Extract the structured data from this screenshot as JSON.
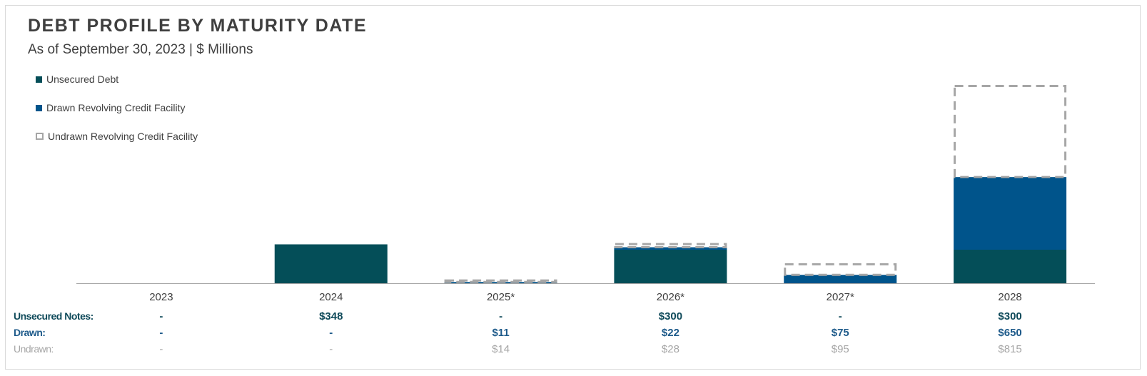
{
  "title": "DEBT PROFILE BY MATURITY DATE",
  "subtitle": "As of September 30, 2023 | $ Millions",
  "colors": {
    "unsecured": "#044e58",
    "drawn": "#00548b",
    "undrawn_border": "#a6a6a6",
    "axis": "#a6a6a6"
  },
  "legend": [
    {
      "label": "Unsecured Debt",
      "style": "solid",
      "color": "#044e58"
    },
    {
      "label": "Drawn Revolving Credit Facility",
      "style": "solid",
      "color": "#00548b"
    },
    {
      "label": "Undrawn Revolving Credit Facility",
      "style": "dashed",
      "color": "#a6a6a6"
    }
  ],
  "chart_data": {
    "type": "bar",
    "stacked": true,
    "categories": [
      "2023",
      "2024",
      "2025*",
      "2026*",
      "2027*",
      "2028"
    ],
    "series": [
      {
        "name": "Unsecured Debt",
        "values": [
          0,
          348,
          0,
          300,
          0,
          300
        ]
      },
      {
        "name": "Drawn Revolving Credit Facility",
        "values": [
          0,
          0,
          11,
          22,
          75,
          650
        ]
      },
      {
        "name": "Undrawn Revolving Credit Facility",
        "values": [
          0,
          0,
          14,
          28,
          95,
          815
        ]
      }
    ],
    "ylim": [
      0,
      1800
    ],
    "grid": false,
    "legend_position": "top-left"
  },
  "table": {
    "rows": [
      {
        "label": "Unsecured Notes:",
        "values": [
          "-",
          "$348",
          "-",
          "$300",
          "-",
          "$300"
        ]
      },
      {
        "label": "Drawn:",
        "values": [
          "-",
          "-",
          "$11",
          "$22",
          "$75",
          "$650"
        ]
      },
      {
        "label": "Undrawn:",
        "values": [
          "-",
          "-",
          "$14",
          "$28",
          "$95",
          "$815"
        ]
      }
    ]
  }
}
